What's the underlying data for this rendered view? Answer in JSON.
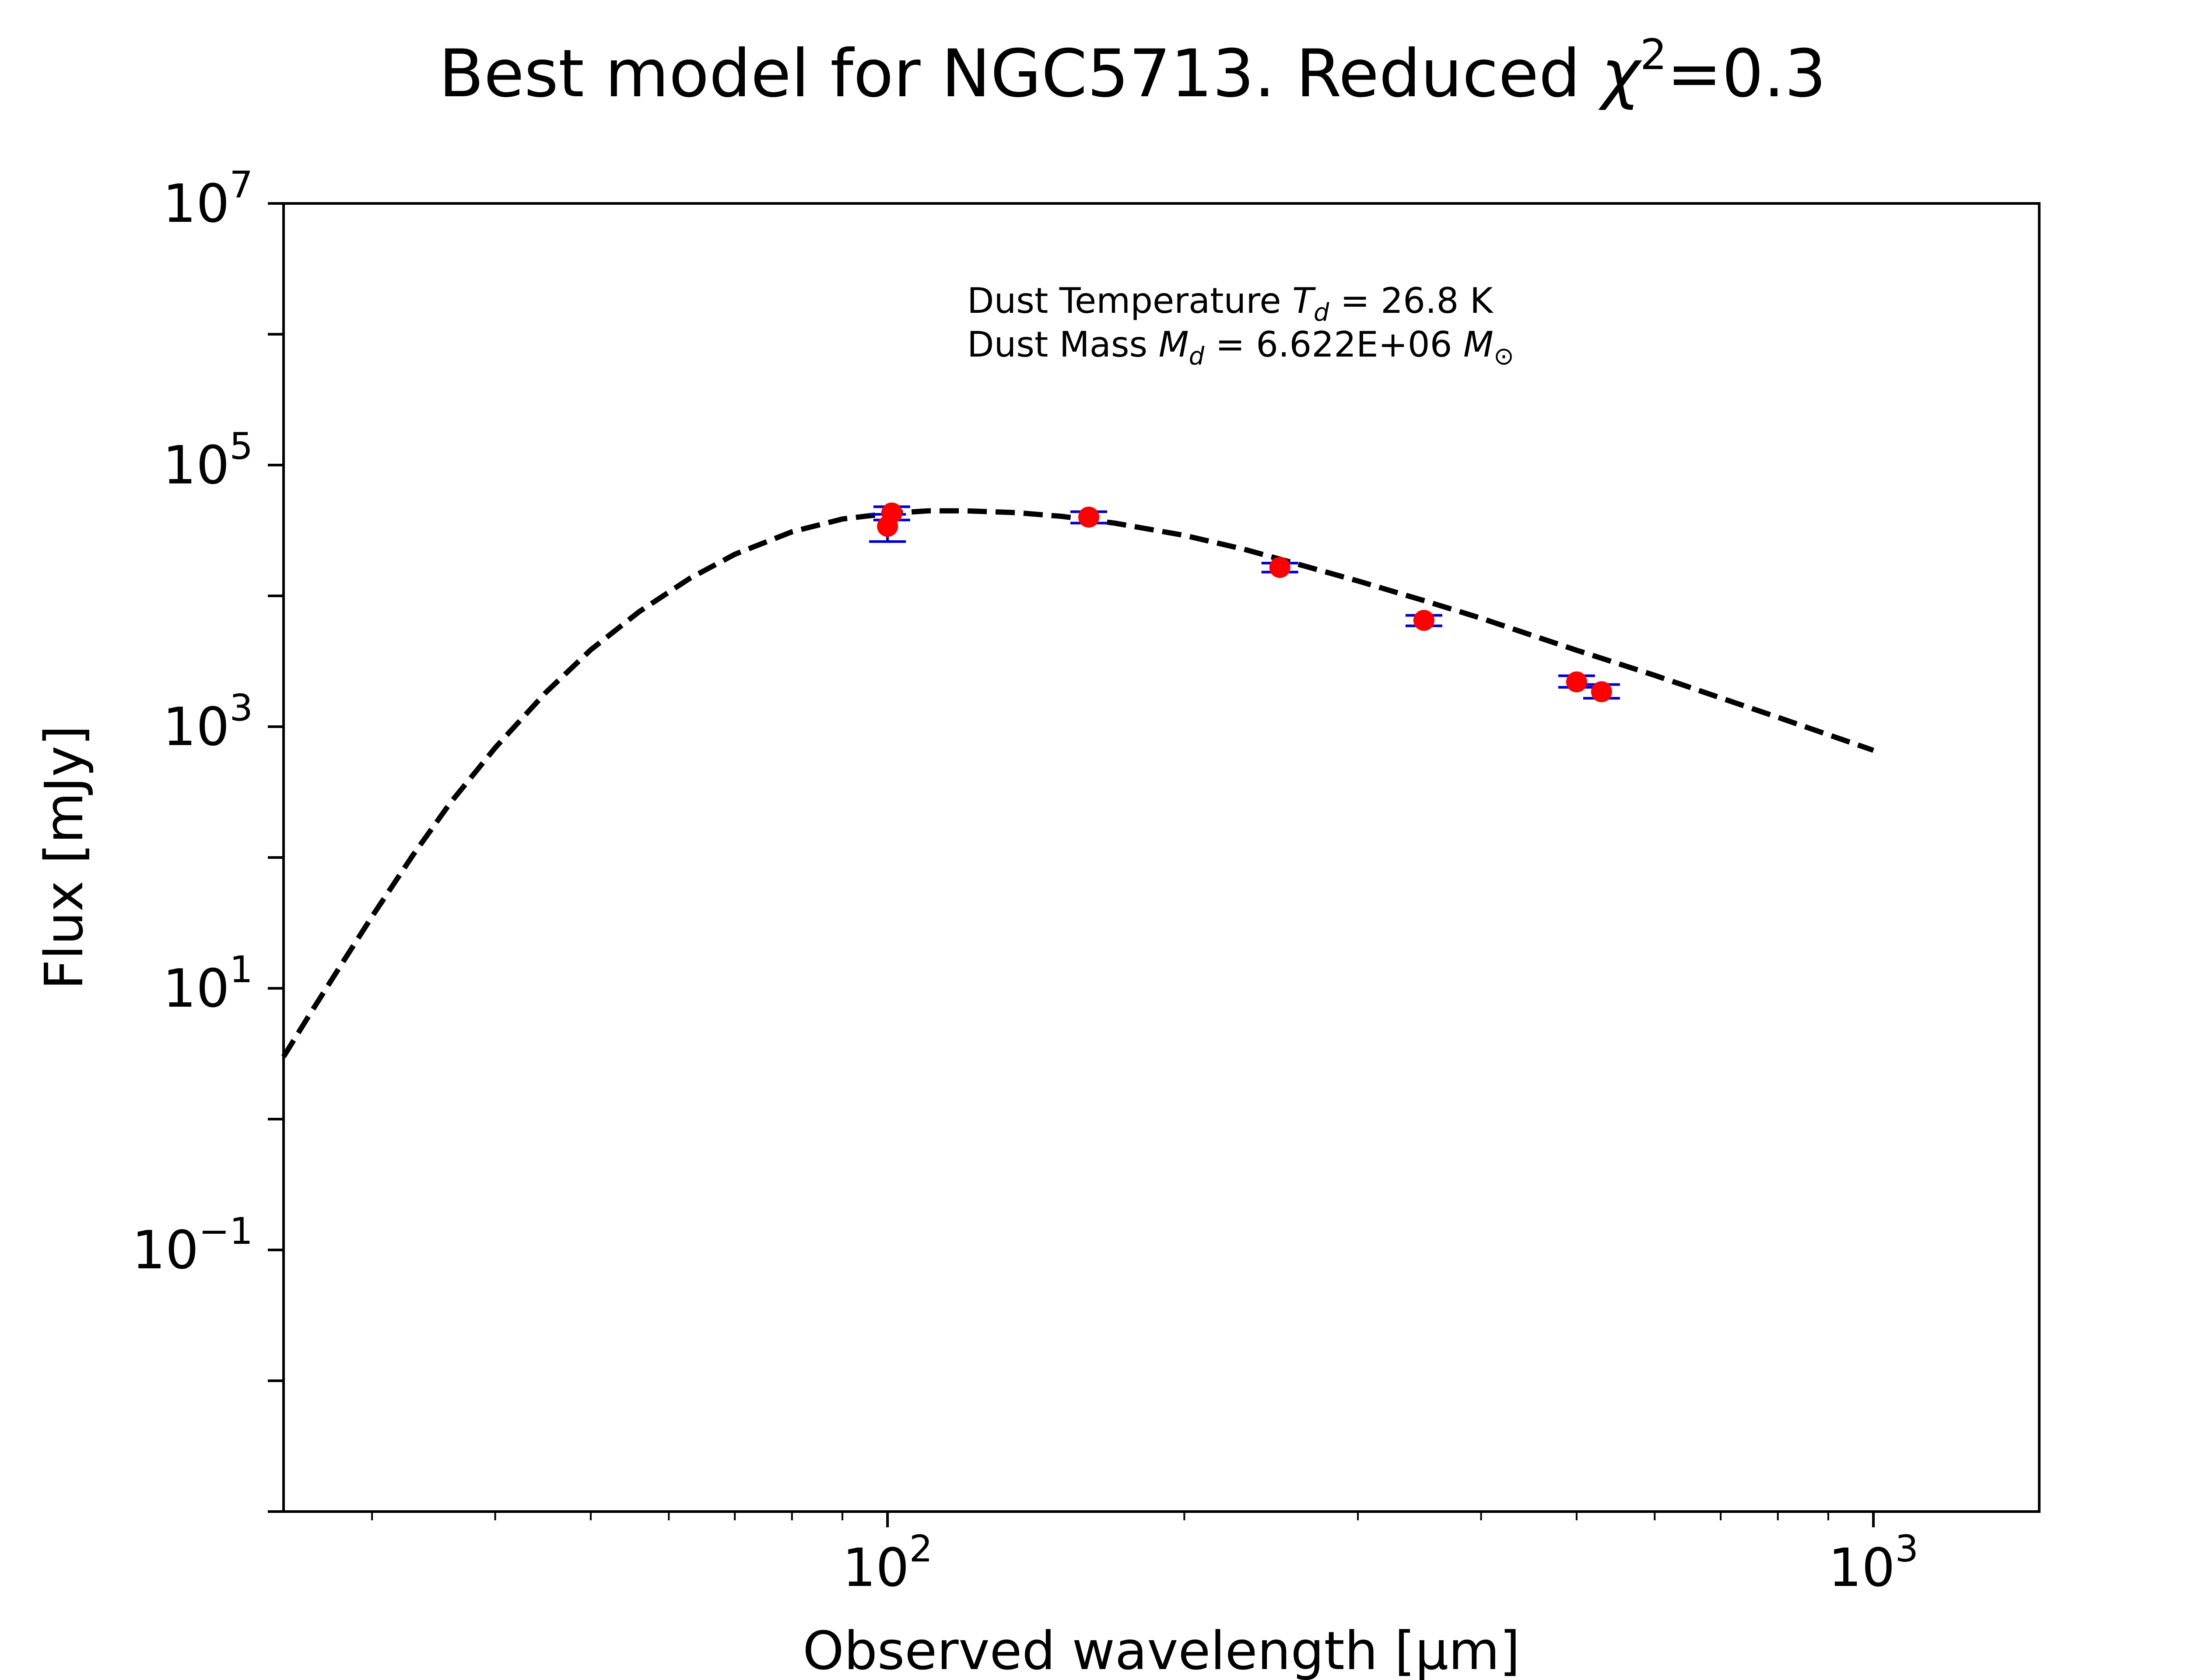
{
  "chart_data": {
    "type": "scatter",
    "title": "Best model for NGC5713. Reduced χ²=0.3",
    "title_parts": {
      "main": "Best model for NGC5713. Reduced ",
      "symbol": "χ",
      "sup": "2",
      "tail": "=0.3"
    },
    "xlabel": "Observed wavelength [μm]",
    "ylabel": "Flux [mJy]",
    "x_scale": "log",
    "y_scale": "log",
    "xlim": [
      24.4,
      1473
    ],
    "ylim": [
      0.001,
      10000000
    ],
    "grid": false,
    "x_ticks": [
      {
        "value": 100,
        "base": "10",
        "exp": "2"
      },
      {
        "value": 1000,
        "base": "10",
        "exp": "3"
      }
    ],
    "y_ticks": [
      {
        "value": 0.1,
        "base": "10",
        "exp": "−1"
      },
      {
        "value": 10,
        "base": "10",
        "exp": "1"
      },
      {
        "value": 1000,
        "base": "10",
        "exp": "3"
      },
      {
        "value": 100000,
        "base": "10",
        "exp": "5"
      },
      {
        "value": 10000000,
        "base": "10",
        "exp": "7"
      }
    ],
    "annotations": [
      {
        "pre": "Dust Temperature ",
        "sym": "T",
        "sub": "d",
        "post": " = 26.8 K"
      },
      {
        "pre": "Dust Mass ",
        "sym": "M",
        "sub": "d",
        "post": " = 6.622E+06 ",
        "sym2": "M",
        "sub2": "⊙"
      }
    ],
    "series": [
      {
        "style": "dashed-line",
        "color": "#000000",
        "x": [
          24.4,
          26,
          28,
          30,
          33,
          36,
          40,
          45,
          50,
          56,
          63,
          70,
          80,
          90,
          100,
          110,
          120,
          135,
          150,
          170,
          200,
          230,
          250,
          300,
          350,
          400,
          500,
          600,
          700,
          800,
          1000
        ],
        "y": [
          3.0,
          6.5,
          15.7,
          35.4,
          104,
          260,
          690,
          1820,
          3870,
          7580,
          13600,
          20800,
          30900,
          38700,
          42600,
          44700,
          44700,
          43300,
          40600,
          36000,
          29000,
          22700,
          19100,
          13000,
          9200,
          6750,
          3840,
          2470,
          1660,
          1180,
          660
        ]
      },
      {
        "style": "points-with-errorbars",
        "color": "#ff0000",
        "errorbar_color": "#0000cc",
        "x": [
          100,
          101,
          160,
          250,
          350,
          500,
          530
        ],
        "y": [
          34000,
          43000,
          40000,
          16500,
          6500,
          2200,
          1850
        ],
        "yerr_low": [
          26000,
          38000,
          36000,
          15200,
          5900,
          2000,
          1650
        ],
        "yerr_high": [
          42000,
          48000,
          44000,
          17800,
          7100,
          2450,
          2100
        ]
      }
    ]
  }
}
